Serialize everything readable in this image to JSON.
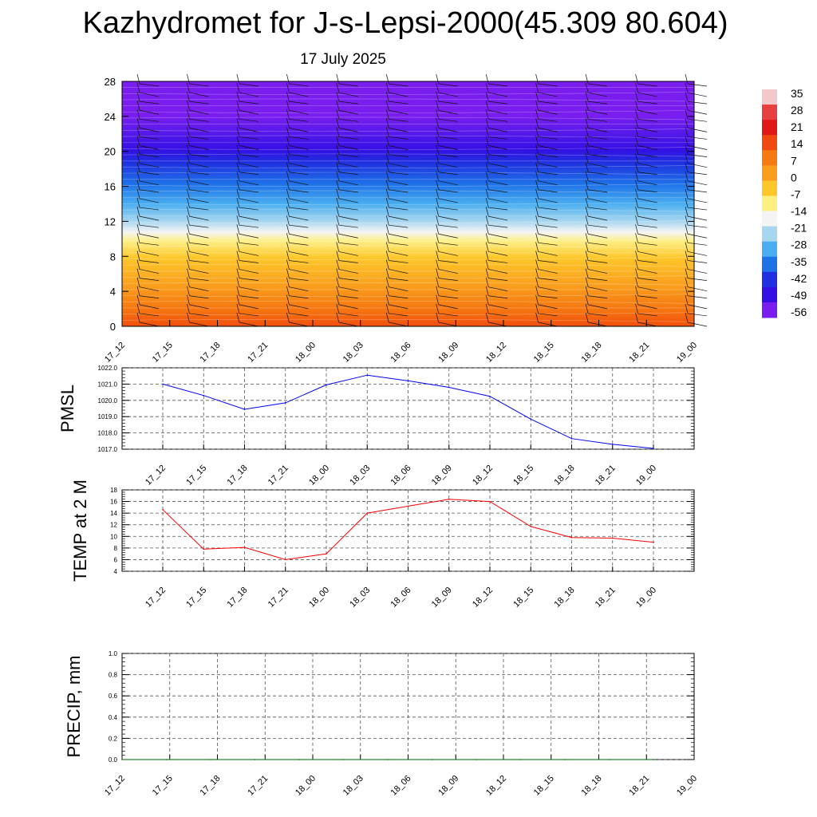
{
  "title": "Kazhydromet for J-s-Lepsi-2000(45.309 80.604)",
  "subtitle": "17 July 2025",
  "chart_data": [
    {
      "type": "heatmap",
      "name": "cross-section",
      "y_ticks": [
        "0",
        "4",
        "8",
        "12",
        "16",
        "20",
        "24",
        "28"
      ],
      "ylim": [
        0,
        28
      ],
      "x_ticks": [
        "17_12",
        "17_15",
        "17_18",
        "17_21",
        "18_00",
        "18_03",
        "18_06",
        "18_09",
        "18_12",
        "18_15",
        "18_18",
        "18_21",
        "19_00"
      ],
      "colorbar": {
        "labels": [
          "35",
          "28",
          "21",
          "14",
          "7",
          "0",
          "-7",
          "-14",
          "-21",
          "-28",
          "-35",
          "-42",
          "-49",
          "-56"
        ],
        "colors": [
          "#f2c8c8",
          "#e84040",
          "#e01818",
          "#f04a12",
          "#f57a10",
          "#fa9c1c",
          "#fdc72a",
          "#fdf080",
          "#f4f4f4",
          "#a6d6f0",
          "#4aaef0",
          "#1e72e8",
          "#2030e0",
          "#3410e4",
          "#7a1ef0"
        ]
      },
      "wind_barbs": true
    },
    {
      "type": "line",
      "name": "PMSL",
      "ylabel": "PMSL",
      "y_ticks": [
        "1017.0",
        "1018.0",
        "1019.0",
        "1020.0",
        "1021.0",
        "1022.0"
      ],
      "ylim": [
        1017,
        1022
      ],
      "x": [
        "17_12",
        "17_15",
        "17_18",
        "17_21",
        "18_00",
        "18_03",
        "18_06",
        "18_09",
        "18_12",
        "18_15",
        "18_18",
        "18_21",
        "19_00"
      ],
      "values": [
        1021.0,
        1020.3,
        1019.45,
        1019.85,
        1020.95,
        1021.55,
        1021.2,
        1020.8,
        1020.25,
        1018.85,
        1017.65,
        1017.3,
        1017.05
      ],
      "color": "#0000ff"
    },
    {
      "type": "line",
      "name": "TEMP",
      "ylabel": "TEMP at 2 M",
      "y_ticks": [
        "4",
        "6",
        "8",
        "10",
        "12",
        "14",
        "16",
        "18"
      ],
      "ylim": [
        4,
        18
      ],
      "x": [
        "17_12",
        "17_15",
        "17_18",
        "17_21",
        "18_00",
        "18_03",
        "18_06",
        "18_09",
        "18_12",
        "18_15",
        "18_18",
        "18_21",
        "19_00"
      ],
      "values": [
        14.6,
        7.8,
        8.1,
        6.0,
        7.0,
        14.0,
        15.2,
        16.4,
        16.0,
        11.7,
        9.8,
        9.7,
        9.0
      ],
      "color": "#ff0000"
    },
    {
      "type": "line",
      "name": "PRECIP",
      "ylabel": "PRECIP, mm",
      "y_ticks": [
        "0.0",
        "0.2",
        "0.4",
        "0.6",
        "0.8",
        "1.0"
      ],
      "ylim": [
        0,
        1
      ],
      "x": [
        "17_12",
        "17_15",
        "17_18",
        "17_21",
        "18_00",
        "18_03",
        "18_06",
        "18_09",
        "18_12",
        "18_15",
        "18_18",
        "18_21",
        "19_00"
      ],
      "values": [
        0,
        0,
        0,
        0,
        0,
        0,
        0,
        0,
        0,
        0,
        0,
        0,
        0
      ],
      "color": "#006400"
    }
  ]
}
